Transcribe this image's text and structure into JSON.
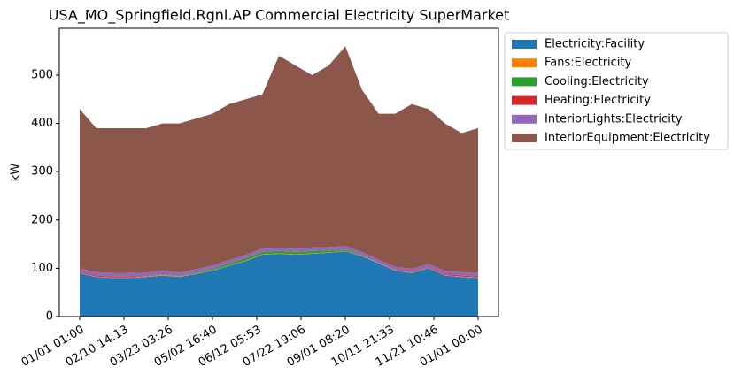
{
  "chart_data": {
    "type": "stacked_area",
    "title": "USA_MO_Springfield.Rgnl.AP Commercial Electricity SuperMarket",
    "ylabel": "kW",
    "x": [
      1,
      366,
      731,
      1096,
      1461,
      1826,
      2191,
      2556,
      2921,
      3286,
      3651,
      4016,
      4381,
      4746,
      5111,
      5476,
      5841,
      6206,
      6571,
      6936,
      7301,
      7666,
      8031,
      8396,
      8760
    ],
    "series": [
      {
        "name": "Electricity:Facility",
        "color": "#1f77b4",
        "values": [
          90,
          82,
          80,
          80,
          82,
          85,
          82,
          88,
          95,
          105,
          115,
          128,
          130,
          128,
          130,
          132,
          135,
          125,
          110,
          95,
          90,
          100,
          85,
          82,
          80
        ]
      },
      {
        "name": "Fans:Electricity",
        "color": "#ff7f0e",
        "values": [
          1,
          1,
          1,
          1,
          1,
          1,
          1,
          1,
          1,
          1,
          1,
          1,
          1,
          1,
          1,
          1,
          1,
          1,
          1,
          1,
          1,
          1,
          1,
          1,
          1
        ]
      },
      {
        "name": "Cooling:Electricity",
        "color": "#2ca02c",
        "values": [
          0,
          0,
          0,
          0,
          0,
          1,
          1,
          2,
          3,
          4,
          5,
          5,
          5,
          5,
          5,
          4,
          3,
          1,
          0,
          0,
          0,
          0,
          0,
          0,
          0
        ]
      },
      {
        "name": "Heating:Electricity",
        "color": "#d62728",
        "values": [
          2,
          2,
          2,
          2,
          1,
          1,
          0,
          0,
          0,
          0,
          0,
          0,
          0,
          0,
          0,
          0,
          0,
          0,
          0,
          0,
          1,
          1,
          2,
          2,
          2
        ]
      },
      {
        "name": "InteriorLights:Electricity",
        "color": "#9467bd",
        "values": [
          7,
          7,
          7,
          7,
          7,
          7,
          7,
          7,
          7,
          7,
          7,
          7,
          7,
          7,
          7,
          7,
          7,
          7,
          7,
          7,
          7,
          7,
          7,
          7,
          7
        ]
      },
      {
        "name": "InteriorEquipment:Electricity",
        "color": "#8c564b",
        "values": [
          330,
          298,
          300,
          300,
          299,
          305,
          309,
          312,
          314,
          323,
          322,
          319,
          397,
          379,
          357,
          376,
          414,
          336,
          302,
          317,
          341,
          321,
          305,
          288,
          300
        ]
      }
    ],
    "xlim": [
      -446,
      9207
    ],
    "xticks": [
      {
        "value": 1,
        "label": "01/01 01:00"
      },
      {
        "value": 974.2,
        "label": "02/10 14:13"
      },
      {
        "value": 1947.4,
        "label": "03/23 03:26"
      },
      {
        "value": 2920.7,
        "label": "05/02 16:40"
      },
      {
        "value": 3893.9,
        "label": "06/12 05:53"
      },
      {
        "value": 4867.1,
        "label": "07/22 19:06"
      },
      {
        "value": 5840.3,
        "label": "09/01 08:20"
      },
      {
        "value": 6813.6,
        "label": "10/11 21:33"
      },
      {
        "value": 7786.8,
        "label": "11/21 10:46"
      },
      {
        "value": 8760,
        "label": "01/01 00:00"
      }
    ],
    "ylim": [
      0,
      597
    ],
    "yticks": [
      0,
      100,
      200,
      300,
      400,
      500
    ],
    "legend": "outside-upper-right"
  }
}
